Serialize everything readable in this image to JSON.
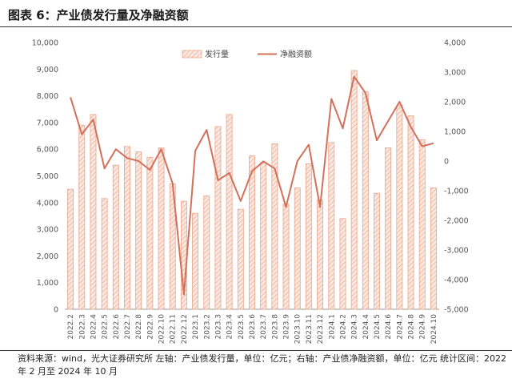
{
  "title": "图表 6：产业债发行量及净融资额",
  "footnote": "资料来源：wind，光大证券研究所    左轴：产业债发行量，单位：亿元；右轴：产业债净融资额，单位：亿元    统计区间：2022 年 2 月至 2024 年 10 月",
  "colors": {
    "bar_fill": "#f4c9b8",
    "bar_stroke": "#e8a58c",
    "line": "#d2705a"
  },
  "chart_data": {
    "type": "bar",
    "title": "图表 6：产业债发行量及净融资额",
    "categories": [
      "2022.2",
      "2022.3",
      "2022.4",
      "2022.5",
      "2022.6",
      "2022.7",
      "2022.8",
      "2022.9",
      "2022.10",
      "2022.11",
      "2022.12",
      "2023.1",
      "2023.2",
      "2023.3",
      "2023.4",
      "2023.5",
      "2023.6",
      "2023.7",
      "2023.8",
      "2023.9",
      "2023.10",
      "2023.11",
      "2023.12",
      "2024.1",
      "2024.2",
      "2024.3",
      "2024.4",
      "2024.5",
      "2024.6",
      "2024.7",
      "2024.8",
      "2024.9",
      "2024.10"
    ],
    "series": [
      {
        "name": "发行量",
        "type": "bar",
        "axis": "left",
        "values": [
          4500,
          6900,
          7300,
          4150,
          5400,
          6100,
          5900,
          5700,
          6050,
          4700,
          4050,
          3600,
          4250,
          6850,
          7300,
          3750,
          5750,
          5500,
          6200,
          3950,
          4550,
          5450,
          4100,
          6250,
          3400,
          8950,
          8150,
          4350,
          6050,
          7650,
          7250,
          6350,
          4550
        ]
      },
      {
        "name": "净融资额",
        "type": "line",
        "axis": "right",
        "values": [
          2150,
          900,
          1400,
          -250,
          400,
          100,
          0,
          -300,
          400,
          -750,
          -4500,
          350,
          1050,
          -650,
          -400,
          -1350,
          -350,
          -10,
          -250,
          -1550,
          0,
          550,
          -1550,
          2100,
          1100,
          2850,
          2300,
          700,
          1350,
          2000,
          1150,
          500,
          600
        ]
      }
    ],
    "y_left": {
      "min": 0,
      "max": 10000,
      "ticks": [
        "0",
        "1,000",
        "2,000",
        "3,000",
        "4,000",
        "5,000",
        "6,000",
        "7,000",
        "8,000",
        "9,000",
        "10,000"
      ]
    },
    "y_right": {
      "min": -5000,
      "max": 4000,
      "ticks": [
        "-5,000",
        "-4,000",
        "-3,000",
        "-2,000",
        "-1,000",
        "0",
        "1,000",
        "2,000",
        "3,000",
        "4,000"
      ]
    },
    "grid": false,
    "legend_placement": "top-center"
  }
}
